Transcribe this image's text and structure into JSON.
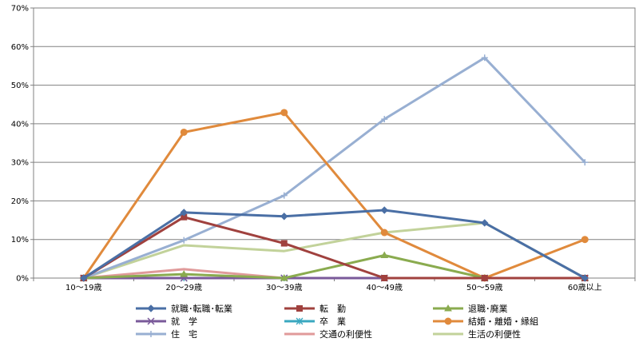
{
  "chart_data": {
    "type": "line",
    "categories": [
      "10～19歳",
      "20～29歳",
      "30～39歳",
      "40～49歳",
      "50～59歳",
      "60歳以上"
    ],
    "y_ticks": [
      "0%",
      "10%",
      "20%",
      "30%",
      "40%",
      "50%",
      "60%",
      "70%"
    ],
    "ylim": [
      0,
      70
    ],
    "grid": true,
    "legend_position": "bottom",
    "series": [
      {
        "name": "就職･転職･転業",
        "color": "#4a6fa5",
        "marker": "diamond",
        "values": [
          0,
          17.0,
          16.0,
          17.6,
          14.3,
          0
        ]
      },
      {
        "name": "転　勤",
        "color": "#a0413e",
        "marker": "square",
        "values": [
          0,
          15.8,
          9.0,
          0,
          0,
          0
        ]
      },
      {
        "name": "退職･廃業",
        "color": "#8aab4f",
        "marker": "triangle",
        "values": [
          0,
          1.0,
          0,
          5.9,
          0,
          0
        ]
      },
      {
        "name": "就　学",
        "color": "#7a5a9a",
        "marker": "x",
        "values": [
          0,
          0,
          0,
          0,
          0,
          0
        ]
      },
      {
        "name": "卒　業",
        "color": "#3aa8c0",
        "marker": "star",
        "values": [
          0,
          0,
          0,
          0,
          0,
          0
        ]
      },
      {
        "name": "結婚・離婚・縁組",
        "color": "#e08a3c",
        "marker": "circle",
        "values": [
          0,
          37.8,
          42.9,
          11.8,
          0,
          10.0
        ]
      },
      {
        "name": "住　宅",
        "color": "#98afd2",
        "marker": "plus",
        "values": [
          0,
          9.8,
          21.4,
          41.2,
          57.1,
          30.0
        ]
      },
      {
        "name": "交通の利便性",
        "color": "#e09a9a",
        "marker": "none",
        "values": [
          0,
          2.3,
          0,
          0,
          0,
          0
        ]
      },
      {
        "name": "生活の利便性",
        "color": "#c2d29a",
        "marker": "none",
        "values": [
          0,
          8.5,
          7.0,
          11.8,
          14.3,
          0
        ]
      }
    ]
  }
}
